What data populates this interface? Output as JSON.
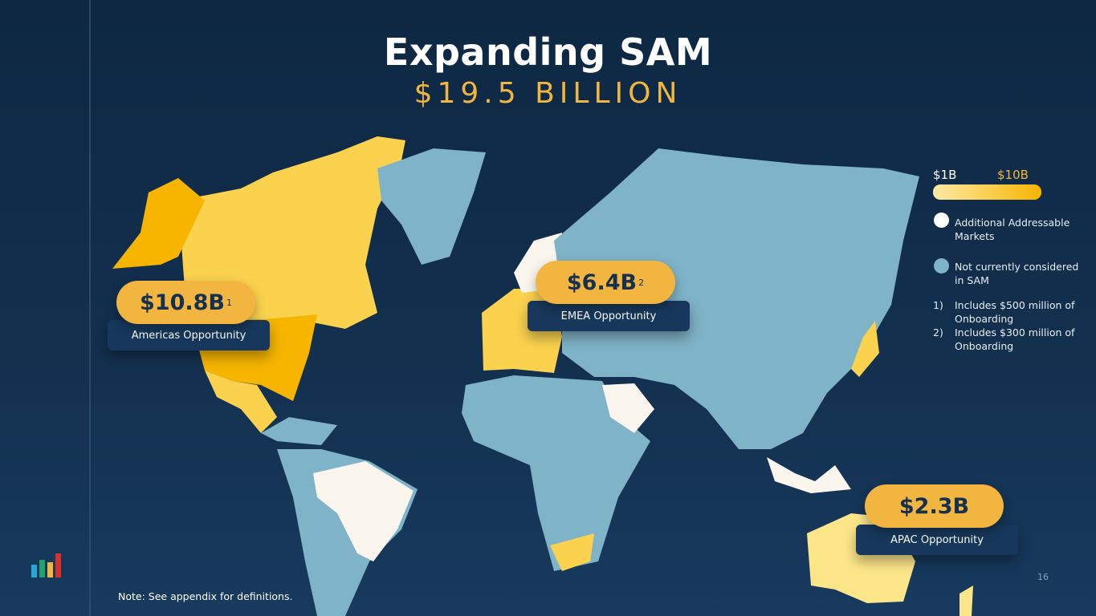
{
  "header": {
    "title": "Expanding SAM",
    "subtitle": "$19.5 BILLION"
  },
  "legend": {
    "scale_min": "$1B",
    "scale_max": "$10B",
    "items": [
      "Additional Addressable Markets",
      "Not currently considered in SAM"
    ]
  },
  "footnotes": [
    {
      "marker": "1)",
      "text": "Includes $500 million of Onboarding"
    },
    {
      "marker": "2)",
      "text": "Includes $300 million of Onboarding"
    }
  ],
  "callouts": [
    {
      "amount": "$10.8B",
      "sup": "1",
      "label": "Americas Opportunity"
    },
    {
      "amount": "$6.4B",
      "sup": "2",
      "label": "EMEA Opportunity"
    },
    {
      "amount": "$2.3B",
      "label": "APAC Opportunity"
    }
  ],
  "note": "Note: See appendix for definitions.",
  "page_number": "16"
}
